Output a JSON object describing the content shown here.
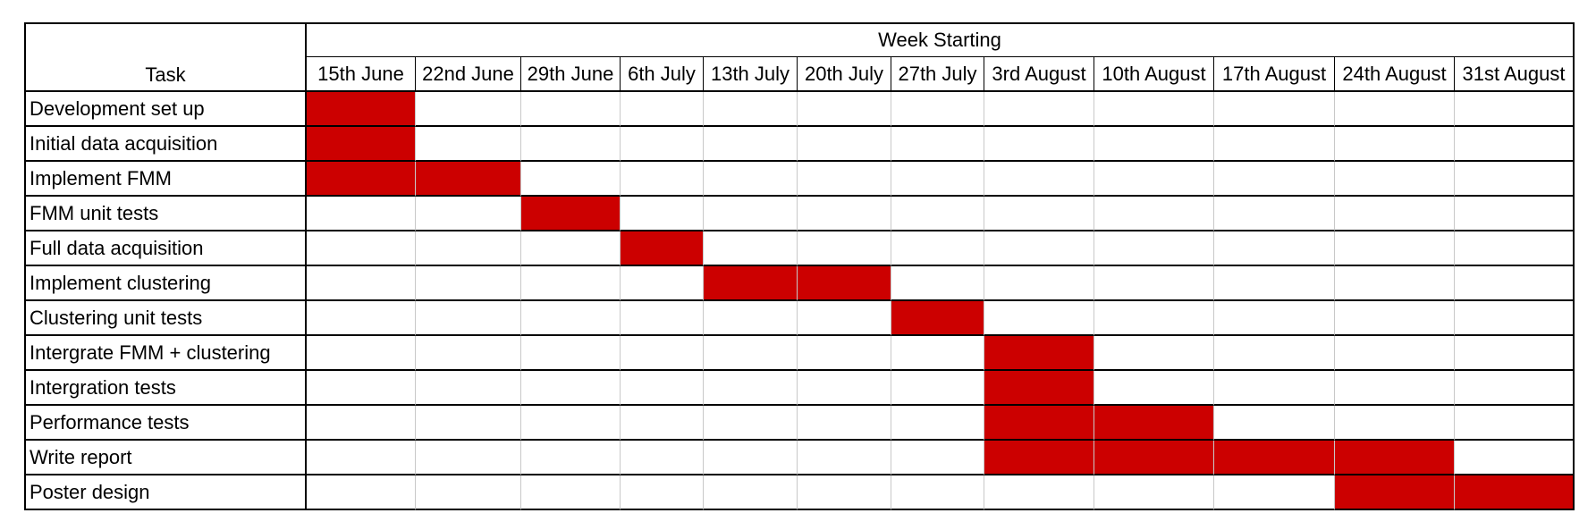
{
  "chart_data": {
    "type": "table",
    "task_header": "Task",
    "group_header": "Week Starting",
    "weeks": [
      "15th June",
      "22nd June",
      "29th June",
      "6th July",
      "13th July",
      "20th July",
      "27th July",
      "3rd August",
      "10th August",
      "17th August",
      "24th August",
      "31st August"
    ],
    "tasks": [
      {
        "name": "Development set up",
        "weeks": [
          "15th June"
        ]
      },
      {
        "name": "Initial data acquisition",
        "weeks": [
          "15th June"
        ]
      },
      {
        "name": "Implement FMM",
        "weeks": [
          "15th June",
          "22nd June"
        ]
      },
      {
        "name": "FMM unit tests",
        "weeks": [
          "29th June"
        ]
      },
      {
        "name": "Full data acquisition",
        "weeks": [
          "6th July"
        ]
      },
      {
        "name": "Implement clustering",
        "weeks": [
          "13th July",
          "20th July"
        ]
      },
      {
        "name": "Clustering unit tests",
        "weeks": [
          "27th July"
        ]
      },
      {
        "name": "Intergrate FMM + clustering",
        "weeks": [
          "3rd August"
        ]
      },
      {
        "name": "Intergration tests",
        "weeks": [
          "3rd August"
        ]
      },
      {
        "name": "Performance tests",
        "weeks": [
          "3rd August",
          "10th August"
        ]
      },
      {
        "name": "Write report",
        "weeks": [
          "3rd August",
          "10th August",
          "17th August",
          "24th August"
        ]
      },
      {
        "name": "Poster design",
        "weeks": [
          "24th August",
          "31st August"
        ]
      }
    ],
    "bar_color": "#cc0000",
    "grid": true
  }
}
